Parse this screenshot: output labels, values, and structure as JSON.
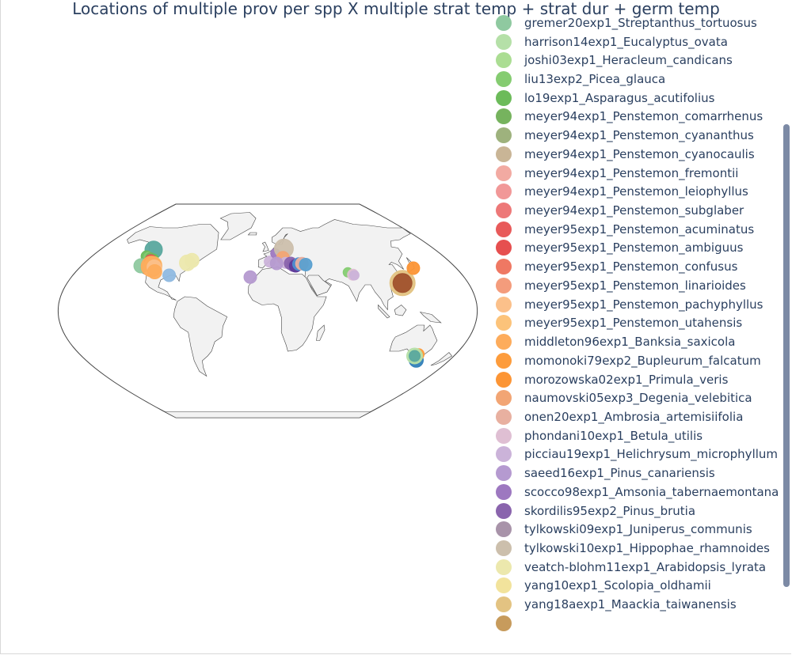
{
  "chart_data": {
    "type": "scatter",
    "title": "Locations of multiple prov per spp X multiple strat temp + strat dur + germ temp",
    "map_projection": "natural-earth",
    "legend": {
      "placement": "right",
      "scrollable": true,
      "items": [
        {
          "name": "gremer20exp1_Streptanthus_tortuosus",
          "color": "#8fc9a0",
          "partial": "top"
        },
        {
          "name": "harrison14exp1_Eucalyptus_ovata",
          "color": "#b5e0a8"
        },
        {
          "name": "joshi03exp1_Heracleum_candicans",
          "color": "#abdd93"
        },
        {
          "name": "liu13exp2_Picea_glauca",
          "color": "#85cc71"
        },
        {
          "name": "lo19exp1_Asparagus_acutifolius",
          "color": "#6cbb5a"
        },
        {
          "name": "meyer94exp1_Penstemon_comarrhenus",
          "color": "#76b35e"
        },
        {
          "name": "meyer94exp1_Penstemon_cyananthus",
          "color": "#9eb27d"
        },
        {
          "name": "meyer94exp1_Penstemon_cyanocaulis",
          "color": "#c9b596"
        },
        {
          "name": "meyer94exp1_Penstemon_fremontii",
          "color": "#f2aaa2"
        },
        {
          "name": "meyer94exp1_Penstemon_leiophyllus",
          "color": "#f19898"
        },
        {
          "name": "meyer94exp1_Penstemon_subglaber",
          "color": "#ed7878"
        },
        {
          "name": "meyer95exp1_Penstemon_acuminatus",
          "color": "#e85a5a"
        },
        {
          "name": "meyer95exp1_Penstemon_ambiguus",
          "color": "#e64f4f"
        },
        {
          "name": "meyer95exp1_Penstemon_confusus",
          "color": "#ef7863"
        },
        {
          "name": "meyer95exp1_Penstemon_linarioides",
          "color": "#f49c7c"
        },
        {
          "name": "meyer95exp1_Penstemon_pachyphyllus",
          "color": "#fbc08a"
        },
        {
          "name": "meyer95exp1_Penstemon_utahensis",
          "color": "#fcc37a"
        },
        {
          "name": "middleton96exp1_Banksia_saxicola",
          "color": "#fdac5c"
        },
        {
          "name": "momonoki79exp2_Bupleurum_falcatum",
          "color": "#fd9c3c"
        },
        {
          "name": "morozowska02exp1_Primula_veris",
          "color": "#fc9535"
        },
        {
          "name": "naumovski05exp3_Degenia_velebitica",
          "color": "#f2a574"
        },
        {
          "name": "onen20exp1_Ambrosia_artemisiifolia",
          "color": "#e8b0a0"
        },
        {
          "name": "phondani10exp1_Betula_utilis",
          "color": "#dfbfd3"
        },
        {
          "name": "picciau19exp1_Helichrysum_microphyllum",
          "color": "#cbb3d9"
        },
        {
          "name": "saeed16exp1_Pinus_canariensis",
          "color": "#b59ad0"
        },
        {
          "name": "scocco98exp1_Amsonia_tabernaemontana",
          "color": "#9d78c0"
        },
        {
          "name": "skordilis95exp2_Pinus_brutia",
          "color": "#8a64ad"
        },
        {
          "name": "tylkowski09exp1_Juniperus_communis",
          "color": "#a893a9"
        },
        {
          "name": "tylkowski10exp1_Hippophae_rhamnoides",
          "color": "#ccbfac"
        },
        {
          "name": "veatch-blohm11exp1_Arabidopsis_lyrata",
          "color": "#ece8ad"
        },
        {
          "name": "yang10exp1_Scolopia_oldhamii",
          "color": "#f2e39c"
        },
        {
          "name": "yang18aexp1_Maackia_taiwanensis",
          "color": "#e3c382"
        },
        {
          "name": "",
          "color": "#c79b5c",
          "partial": "bottom"
        }
      ]
    },
    "points": [
      {
        "lon": -122.5,
        "lat": 51.5,
        "color": "#5aa89e",
        "size": 11
      },
      {
        "lon": -124,
        "lat": 46,
        "color": "#6cbb5a",
        "size": 7
      },
      {
        "lon": -121.5,
        "lat": 45.5,
        "color": "#85cc71",
        "size": 6
      },
      {
        "lon": -119,
        "lat": 45,
        "color": "#76b35e",
        "size": 6
      },
      {
        "lon": -115,
        "lat": 44,
        "color": "#6cbb5a",
        "size": 6
      },
      {
        "lon": -122.5,
        "lat": 38,
        "color": "#8fc9a0",
        "size": 9
      },
      {
        "lon": -116,
        "lat": 42,
        "color": "#e64f4f",
        "size": 8
      },
      {
        "lon": -113,
        "lat": 40,
        "color": "#e85a5a",
        "size": 8
      },
      {
        "lon": -111,
        "lat": 38.5,
        "color": "#fcc37a",
        "size": 11
      },
      {
        "lon": -112,
        "lat": 37.5,
        "color": "#fdac5c",
        "size": 13
      },
      {
        "lon": -109,
        "lat": 37,
        "color": "#fbc08a",
        "size": 9
      },
      {
        "lon": -106,
        "lat": 33,
        "color": "#fdac5c",
        "size": 9
      },
      {
        "lon": -91,
        "lat": 30,
        "color": "#8fb9e0",
        "size": 8
      },
      {
        "lon": -79,
        "lat": 40.5,
        "color": "#ece8ad",
        "size": 10
      },
      {
        "lon": -75.5,
        "lat": 42.5,
        "color": "#ece8ad",
        "size": 9
      },
      {
        "lon": -16,
        "lat": 28.5,
        "color": "#b59ad0",
        "size": 8
      },
      {
        "lon": 2,
        "lat": 41.5,
        "color": "#cbb3d9",
        "size": 7
      },
      {
        "lon": 8,
        "lat": 48.5,
        "color": "#9d78c0",
        "size": 6
      },
      {
        "lon": 17.5,
        "lat": 52.5,
        "color": "#ccbfac",
        "size": 12
      },
      {
        "lon": 15.5,
        "lat": 44.8,
        "color": "#f2a574",
        "size": 8
      },
      {
        "lon": 17.5,
        "lat": 40.5,
        "color": "#cbb3d9",
        "size": 7
      },
      {
        "lon": 8.8,
        "lat": 40,
        "color": "#b59ad0",
        "size": 8
      },
      {
        "lon": 22.5,
        "lat": 40,
        "color": "#8a64ad",
        "size": 8
      },
      {
        "lon": 25,
        "lat": 38.5,
        "color": "#8a64ad",
        "size": 8
      },
      {
        "lon": 27,
        "lat": 38,
        "color": "#5e3c99",
        "size": 8
      },
      {
        "lon": 30.5,
        "lat": 39.5,
        "color": "#4e8ed0",
        "size": 8
      },
      {
        "lon": 33.5,
        "lat": 39.8,
        "color": "#e8b0a0",
        "size": 8
      },
      {
        "lon": 37,
        "lat": 39,
        "color": "#5aa0d0",
        "size": 8
      },
      {
        "lon": 75,
        "lat": 32.5,
        "color": "#85cc71",
        "size": 6
      },
      {
        "lon": 79,
        "lat": 30.5,
        "color": "#dfbfd3",
        "size": 7
      },
      {
        "lon": 80,
        "lat": 30,
        "color": "#cbb3d9",
        "size": 6
      },
      {
        "lon": 121,
        "lat": 23.5,
        "color": "#e3c382",
        "size": 16
      },
      {
        "lon": 121,
        "lat": 23.5,
        "color": "#a0522d",
        "size": 12
      },
      {
        "lon": 139,
        "lat": 36,
        "color": "#fc9535",
        "size": 8
      },
      {
        "lon": 147,
        "lat": -41.5,
        "color": "#3180b8",
        "size": 9
      },
      {
        "lon": 144.5,
        "lat": -36.5,
        "color": "#fd9c3c",
        "size": 7
      },
      {
        "lon": 142,
        "lat": -38,
        "color": "#b5e0a8",
        "size": 10
      },
      {
        "lon": 142,
        "lat": -38,
        "color": "#5aa89e",
        "size": 7
      }
    ]
  }
}
